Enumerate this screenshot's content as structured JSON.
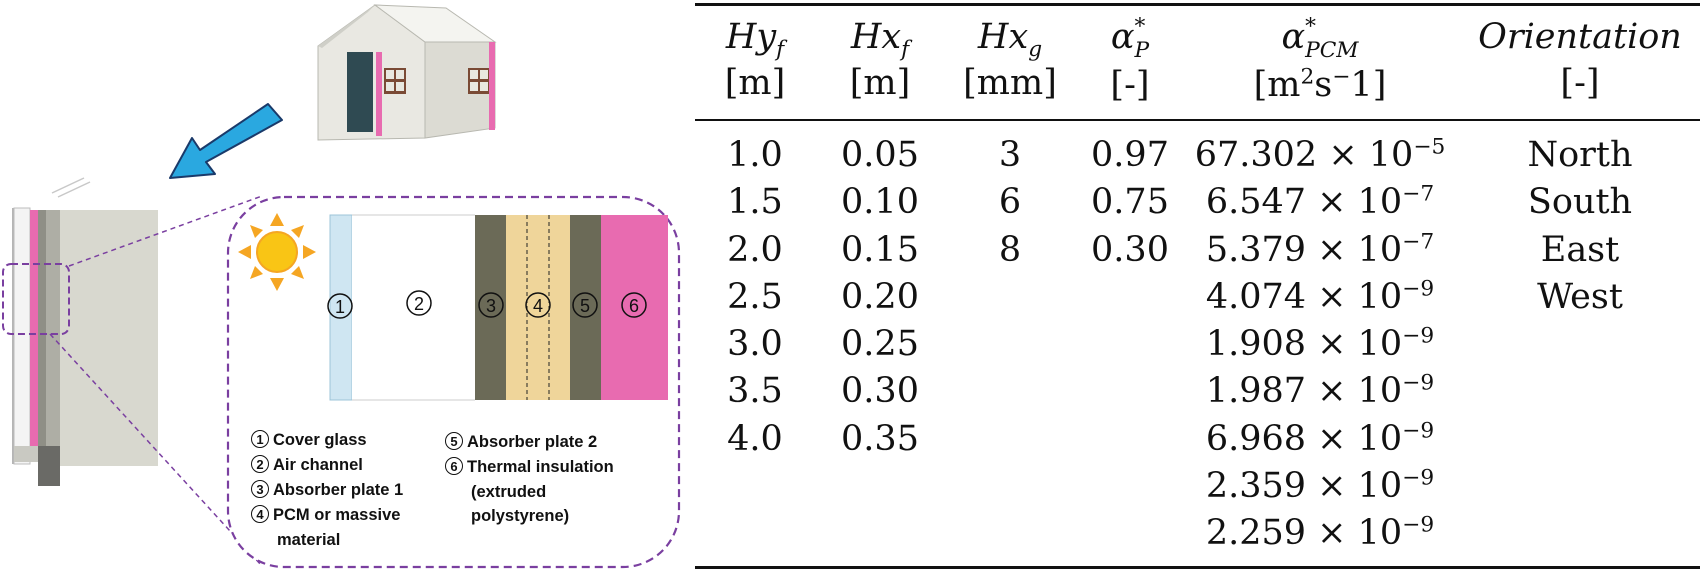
{
  "legend": {
    "items": [
      {
        "num": "1",
        "label": "Cover glass"
      },
      {
        "num": "2",
        "label": "Air channel"
      },
      {
        "num": "3",
        "label": "Absorber plate 1"
      },
      {
        "num": "4",
        "label": "PCM or massive",
        "cont": "material"
      },
      {
        "num": "5",
        "label": "Absorber plate 2"
      },
      {
        "num": "6",
        "label": "Thermal insulation",
        "cont": "(extruded",
        "cont2": "polystyrene)"
      }
    ]
  },
  "layer_numbers": [
    "1",
    "2",
    "3",
    "4",
    "5",
    "6"
  ],
  "colors": {
    "glass": "#cfe6f2",
    "absorber": "#6b6a57",
    "pcm": "#efd59a",
    "insulation": "#e86bb0",
    "arrow": "#2aa8e0",
    "dashed": "#7a3fa0",
    "sun": "#f5a623"
  },
  "table": {
    "headers": [
      {
        "sym": "Hy",
        "sub": "f",
        "unit": "[m]"
      },
      {
        "sym": "Hx",
        "sub": "f",
        "unit": "[m]"
      },
      {
        "sym": "Hx",
        "sub": "g",
        "unit": "[mm]"
      },
      {
        "sym": "α",
        "sup": "*",
        "sub": "P",
        "unit": "[-]"
      },
      {
        "sym": "α",
        "sup": "*",
        "sub": "PCM",
        "unit_pre": "[m",
        "unit_sup1": "2",
        "unit_mid": "s",
        "unit_sup2": "−",
        "unit_post": "1]"
      },
      {
        "sym": "Orientation",
        "unit": "[-]"
      }
    ],
    "hyf": [
      "1.0",
      "1.5",
      "2.0",
      "2.5",
      "3.0",
      "3.5",
      "4.0"
    ],
    "hxf": [
      "0.05",
      "0.10",
      "0.15",
      "0.20",
      "0.25",
      "0.30",
      "0.35"
    ],
    "hxg": [
      "3",
      "6",
      "8"
    ],
    "alpha_p": [
      "0.97",
      "0.75",
      "0.30"
    ],
    "alpha_pcm": [
      {
        "mant": "67.302",
        "exp": "−5"
      },
      {
        "mant": "6.547",
        "exp": "−7"
      },
      {
        "mant": "5.379",
        "exp": "−7"
      },
      {
        "mant": "4.074",
        "exp": "−9"
      },
      {
        "mant": "1.908",
        "exp": "−9"
      },
      {
        "mant": "1.987",
        "exp": "−9"
      },
      {
        "mant": "6.968",
        "exp": "−9"
      },
      {
        "mant": "2.359",
        "exp": "−9"
      },
      {
        "mant": "2.259",
        "exp": "−9"
      }
    ],
    "times": "× 10",
    "orientation": [
      "North",
      "South",
      "East",
      "West"
    ]
  }
}
